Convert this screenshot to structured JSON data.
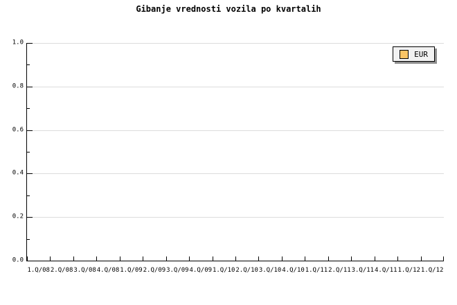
{
  "title": "Gibanje vrednosti vozila po kvartalih",
  "legend": {
    "label": "EUR",
    "swatch_color": "#FAC566"
  },
  "colors": {
    "background": "#FFFFFF",
    "axis": "#000000",
    "gridline": "#DCDCDC",
    "text": "#000000",
    "legend_bg": "#F2F2F2",
    "legend_border": "#000000",
    "legend_shadow": "#8E8E8E"
  },
  "chart_data": {
    "type": "bar",
    "title": "Gibanje vrednosti vozila po kvartalih",
    "categories": [
      "1.Q/08",
      "2.Q/08",
      "3.Q/08",
      "4.Q/08",
      "1.Q/09",
      "2.Q/09",
      "3.Q/09",
      "4.Q/09",
      "1.Q/10",
      "2.Q/10",
      "3.Q/10",
      "4.Q/10",
      "1.Q/11",
      "2.Q/11",
      "3.Q/11",
      "4.Q/11",
      "1.Q/12",
      "1.Q/12"
    ],
    "series": [
      {
        "name": "EUR",
        "color": "#FAC566",
        "values": []
      }
    ],
    "plot_empty": true,
    "xlabel": "",
    "ylabel": "",
    "ylim": [
      0,
      1
    ],
    "y_major_ticks": [
      0,
      0.2,
      0.4,
      0.6,
      0.8,
      1
    ],
    "y_tick_labels": [
      "0.0",
      "0.2",
      "0.4",
      "0.6",
      "0.8",
      "1.0"
    ],
    "y_minor_tick_step": 0.1,
    "grid": "horizontal-major",
    "legend_position": "top-right"
  }
}
